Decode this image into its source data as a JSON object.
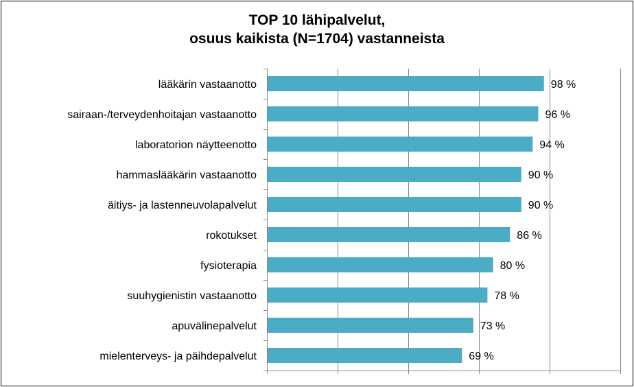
{
  "chart_data": {
    "type": "bar",
    "orientation": "horizontal",
    "title": [
      "TOP 10 lähipalvelut,",
      "osuus kaikista (N=1704) vastanneista"
    ],
    "categories": [
      "lääkärin vastaanotto",
      "sairaan-/terveydenhoitajan vastaanotto",
      "laboratorion näytteenotto",
      "hammaslääkärin vastaanotto",
      "äitiys- ja lastenneuvolapalvelut",
      "rokotukset",
      "fysioterapia",
      "suuhygienistin vastaanotto",
      "apuvälinepalvelut",
      "mielenterveys- ja päihdepalvelut"
    ],
    "values": [
      98,
      96,
      94,
      90,
      90,
      86,
      80,
      78,
      73,
      69
    ],
    "value_labels": [
      "98 %",
      "96 %",
      "94 %",
      "90 %",
      "90 %",
      "86 %",
      "80 %",
      "78 %",
      "73 %",
      "69 %"
    ],
    "xlim": [
      0,
      125
    ],
    "grid": true,
    "tick_labels_shown": false,
    "bar_color": "#4BACC6",
    "gridline_color": "#868686"
  }
}
